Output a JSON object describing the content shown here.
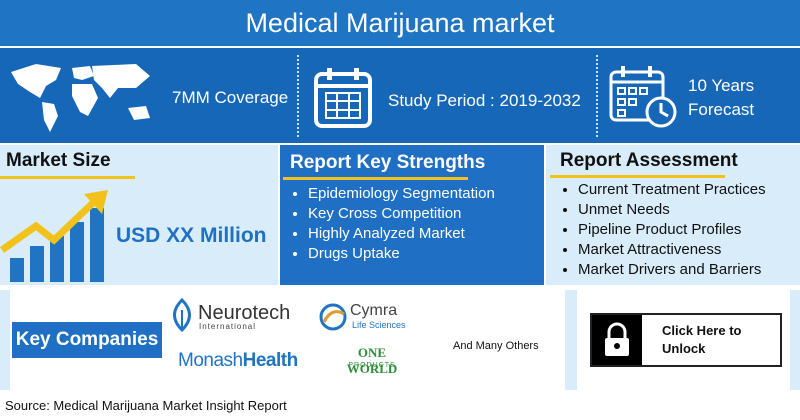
{
  "header": {
    "title": "Medical Marijuana market"
  },
  "highlights": [
    {
      "label": "7MM Coverage"
    },
    {
      "label": "Study Period : 2019-2032"
    },
    {
      "label": "10 Years Forecast"
    }
  ],
  "market_size": {
    "title": "Market Size",
    "value": "USD XX Million"
  },
  "key_strengths": {
    "title": "Report Key Strengths",
    "items": [
      "Epidemiology Segmentation",
      "Key Cross Competition",
      "Highly Analyzed Market",
      "Drugs Uptake"
    ]
  },
  "assessment": {
    "title": "Report Assessment",
    "items": [
      "Current Treatment Practices",
      "Unmet Needs",
      "Pipeline Product Profiles",
      "Market Attractiveness",
      "Market Drivers and Barriers"
    ]
  },
  "companies": {
    "title": "Key Companies",
    "logos": [
      {
        "name": "Neurotech",
        "sub": "International"
      },
      {
        "name": "Cymra",
        "sub": "Life Sciences"
      },
      {
        "name": "Monash",
        "sub": "Health"
      },
      {
        "name": "ONE WORLD",
        "sub": "PRODUCTS"
      }
    ],
    "others": "And Many Others"
  },
  "unlock": {
    "label": "Click Here to Unlock"
  },
  "footer": {
    "source": "Source: Medical Marijuana Market Insight Report"
  }
}
